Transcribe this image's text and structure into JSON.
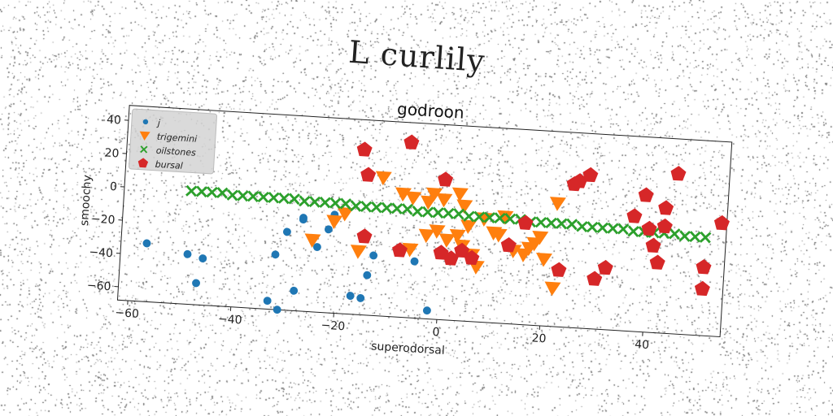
{
  "page_title": "L curlily",
  "chart_data": {
    "type": "scatter",
    "title": "godroon",
    "xlabel": "superodorsal",
    "ylabel": "smoochy",
    "xlim": [
      -62,
      55
    ],
    "ylim": [
      -68,
      49
    ],
    "xticks": [
      -60,
      -40,
      -20,
      0,
      20,
      40
    ],
    "yticks": [
      -60,
      -40,
      -20,
      0,
      20,
      40
    ],
    "grid": false,
    "legend_position": "top-left",
    "series": [
      {
        "name": "j",
        "marker": "circle",
        "color": "#1f77b4",
        "points": [
          [
            -57,
            -33
          ],
          [
            -49,
            -38
          ],
          [
            -46,
            -40
          ],
          [
            -47,
            -55
          ],
          [
            -33,
            -63
          ],
          [
            -31,
            -68
          ],
          [
            -28,
            -56
          ],
          [
            -32,
            -35
          ],
          [
            -30,
            -21
          ],
          [
            -27,
            -13
          ],
          [
            -27,
            -12
          ],
          [
            -22,
            -18
          ],
          [
            -21,
            -9
          ],
          [
            -24,
            -29
          ],
          [
            -17,
            -57
          ],
          [
            -15,
            -58
          ],
          [
            -14,
            -44
          ],
          [
            -13,
            -32
          ],
          [
            -5,
            -34
          ],
          [
            -2,
            -63
          ]
        ]
      },
      {
        "name": "trigemini",
        "marker": "triangle-down",
        "color": "#ff7f0e",
        "points": [
          [
            -25,
            -25
          ],
          [
            -21,
            -13
          ],
          [
            -19,
            -8
          ],
          [
            -16,
            -30
          ],
          [
            -12,
            15
          ],
          [
            -8,
            6
          ],
          [
            -6,
            4
          ],
          [
            -3,
            2
          ],
          [
            -2,
            7
          ],
          [
            0,
            4
          ],
          [
            3,
            8
          ],
          [
            4,
            1
          ],
          [
            -6,
            -27
          ],
          [
            -3,
            -18
          ],
          [
            -1,
            -15
          ],
          [
            1,
            -20
          ],
          [
            3,
            -17
          ],
          [
            4,
            -23
          ],
          [
            5,
            -11
          ],
          [
            6,
            -28
          ],
          [
            7,
            -35
          ],
          [
            8,
            -6
          ],
          [
            10,
            -14
          ],
          [
            11,
            -15
          ],
          [
            12,
            -4
          ],
          [
            14,
            -24
          ],
          [
            16,
            -26
          ],
          [
            17,
            -22
          ],
          [
            18,
            -19
          ],
          [
            19,
            -15
          ],
          [
            20,
            -28
          ],
          [
            22,
            -45
          ],
          [
            22,
            6
          ]
        ]
      },
      {
        "name": "oilstones",
        "marker": "x",
        "color": "#2ca02c",
        "points": [
          [
            -49,
            0
          ],
          [
            -47,
            0
          ],
          [
            -45,
            0
          ],
          [
            -43,
            0
          ],
          [
            -41,
            -1
          ],
          [
            -39,
            -1
          ],
          [
            -37,
            -1
          ],
          [
            -35,
            -1
          ],
          [
            -33,
            -1
          ],
          [
            -31,
            -1
          ],
          [
            -29,
            -1
          ],
          [
            -27,
            -2
          ],
          [
            -25,
            -2
          ],
          [
            -23,
            -2
          ],
          [
            -21,
            -2
          ],
          [
            -19,
            -2
          ],
          [
            -17,
            -3
          ],
          [
            -15,
            -3
          ],
          [
            -13,
            -3
          ],
          [
            -11,
            -3
          ],
          [
            -9,
            -3
          ],
          [
            -7,
            -3
          ],
          [
            -5,
            -4
          ],
          [
            -3,
            -4
          ],
          [
            -1,
            -4
          ],
          [
            1,
            -4
          ],
          [
            3,
            -4
          ],
          [
            5,
            -5
          ],
          [
            7,
            -5
          ],
          [
            9,
            -5
          ],
          [
            11,
            -5
          ],
          [
            13,
            -5
          ],
          [
            15,
            -5
          ],
          [
            17,
            -6
          ],
          [
            19,
            -6
          ],
          [
            21,
            -6
          ],
          [
            23,
            -6
          ],
          [
            25,
            -6
          ],
          [
            27,
            -7
          ],
          [
            29,
            -7
          ],
          [
            31,
            -7
          ],
          [
            33,
            -7
          ],
          [
            35,
            -7
          ],
          [
            37,
            -8
          ],
          [
            39,
            -8
          ],
          [
            41,
            -8
          ],
          [
            43,
            -8
          ],
          [
            45,
            -8
          ],
          [
            47,
            -9
          ],
          [
            49,
            -9
          ],
          [
            51,
            -9
          ]
        ]
      },
      {
        "name": "bursal",
        "marker": "pentagon",
        "color": "#d62728",
        "points": [
          [
            -16,
            31
          ],
          [
            -15,
            16
          ],
          [
            -7,
            37
          ],
          [
            0,
            16
          ],
          [
            -8,
            -28
          ],
          [
            -15,
            -21
          ],
          [
            0,
            -28
          ],
          [
            2,
            -31
          ],
          [
            4,
            -26
          ],
          [
            6,
            -30
          ],
          [
            13,
            -21
          ],
          [
            16,
            -7
          ],
          [
            23,
            -34
          ],
          [
            25,
            18
          ],
          [
            26,
            20
          ],
          [
            28,
            24
          ],
          [
            30,
            -38
          ],
          [
            32,
            -31
          ],
          [
            37,
            1
          ],
          [
            39,
            14
          ],
          [
            40,
            -6
          ],
          [
            41,
            -16
          ],
          [
            42,
            -26
          ],
          [
            43,
            -4
          ],
          [
            43,
            7
          ],
          [
            45,
            28
          ],
          [
            51,
            -27
          ],
          [
            51,
            -40
          ],
          [
            54,
            0
          ]
        ]
      }
    ]
  }
}
